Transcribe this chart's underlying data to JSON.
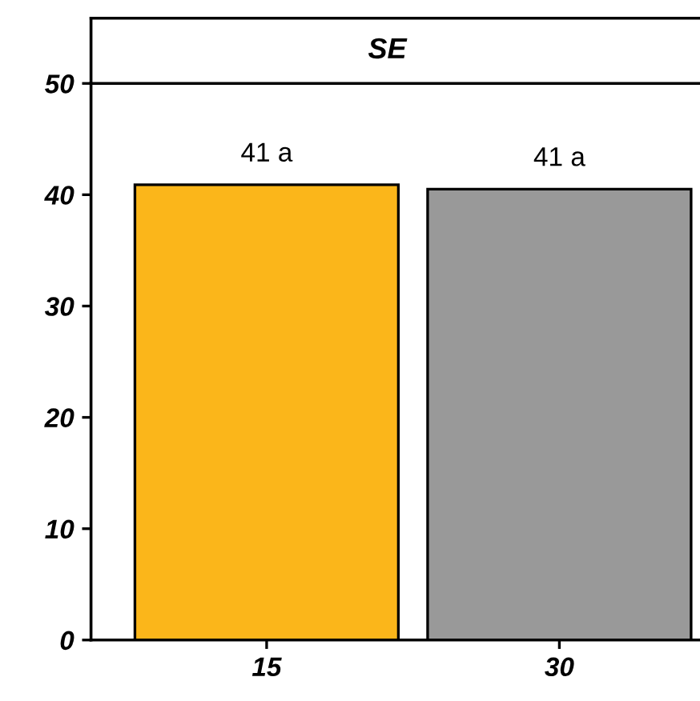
{
  "chart_data": {
    "type": "bar",
    "title": "SE",
    "categories": [
      "15",
      "30"
    ],
    "values": [
      40.9,
      40.5
    ],
    "colors": [
      "#fbb61a",
      "#999999"
    ],
    "value_labels": [
      "41 a",
      "41 a"
    ],
    "ylim": [
      0,
      50
    ],
    "yticks": [
      0,
      10,
      20,
      30,
      40,
      50
    ],
    "grid": false
  }
}
